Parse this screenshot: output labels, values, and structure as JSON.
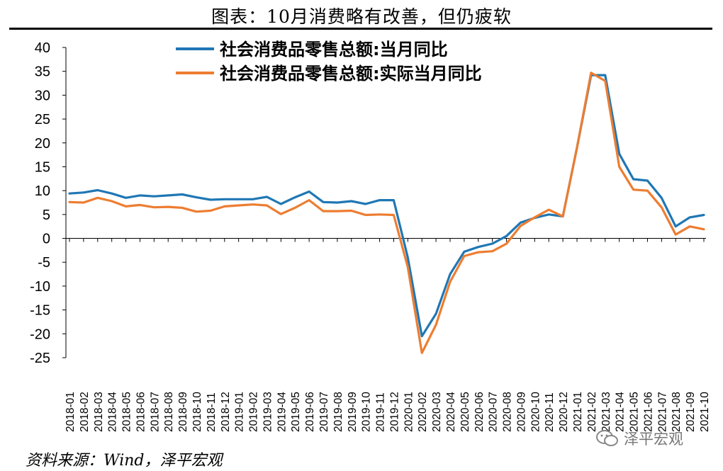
{
  "title": "图表：10月消费略有改善，但仍疲软",
  "source": "资料来源：Wind，泽平宏观",
  "watermark": "泽平宏观",
  "chart_data": {
    "type": "line",
    "ylim": [
      -25,
      40
    ],
    "yticks": [
      40,
      35,
      30,
      25,
      20,
      15,
      10,
      5,
      0,
      -5,
      -10,
      -15,
      -20,
      -25
    ],
    "x": [
      "2018-01",
      "2018-02",
      "2018-03",
      "2018-04",
      "2018-05",
      "2018-06",
      "2018-07",
      "2018-08",
      "2018-09",
      "2018-10",
      "2018-11",
      "2018-12",
      "2019-01",
      "2019-02",
      "2019-03",
      "2019-04",
      "2019-05",
      "2019-06",
      "2019-07",
      "2019-08",
      "2019-09",
      "2019-10",
      "2019-11",
      "2019-12",
      "2020-01",
      "2020-02",
      "2020-03",
      "2020-04",
      "2020-05",
      "2020-06",
      "2020-07",
      "2020-08",
      "2020-09",
      "2020-10",
      "2020-11",
      "2020-12",
      "2021-01",
      "2021-02",
      "2021-03",
      "2021-04",
      "2021-05",
      "2021-06",
      "2021-07",
      "2021-08",
      "2021-09",
      "2021-10"
    ],
    "series": [
      {
        "name": "社会消费品零售总额:当月同比",
        "color": "#1f77b4",
        "values": [
          9.4,
          9.6,
          10.1,
          9.4,
          8.5,
          9.0,
          8.8,
          9.0,
          9.2,
          8.6,
          8.1,
          8.2,
          8.2,
          8.2,
          8.7,
          7.2,
          8.6,
          9.8,
          7.6,
          7.5,
          7.8,
          7.2,
          8.0,
          8.0,
          -4.0,
          -20.5,
          -15.8,
          -7.5,
          -2.8,
          -1.8,
          -1.1,
          0.5,
          3.3,
          4.3,
          5.0,
          4.6,
          19.0,
          34.2,
          34.2,
          17.7,
          12.4,
          12.1,
          8.5,
          2.5,
          4.4,
          4.9
        ]
      },
      {
        "name": "社会消费品零售总额:实际当月同比",
        "color": "#ed7d31",
        "values": [
          7.6,
          7.5,
          8.5,
          7.8,
          6.7,
          7.0,
          6.5,
          6.6,
          6.4,
          5.6,
          5.8,
          6.7,
          6.9,
          7.1,
          6.9,
          5.1,
          6.4,
          8.0,
          5.7,
          5.7,
          5.8,
          4.9,
          5.0,
          4.9,
          -6.0,
          -24.0,
          -18.1,
          -9.1,
          -3.7,
          -2.9,
          -2.7,
          -1.1,
          2.6,
          4.4,
          6.0,
          4.6,
          19.0,
          34.7,
          33.0,
          15.0,
          10.2,
          10.0,
          6.5,
          0.8,
          2.5,
          1.9
        ]
      }
    ]
  }
}
